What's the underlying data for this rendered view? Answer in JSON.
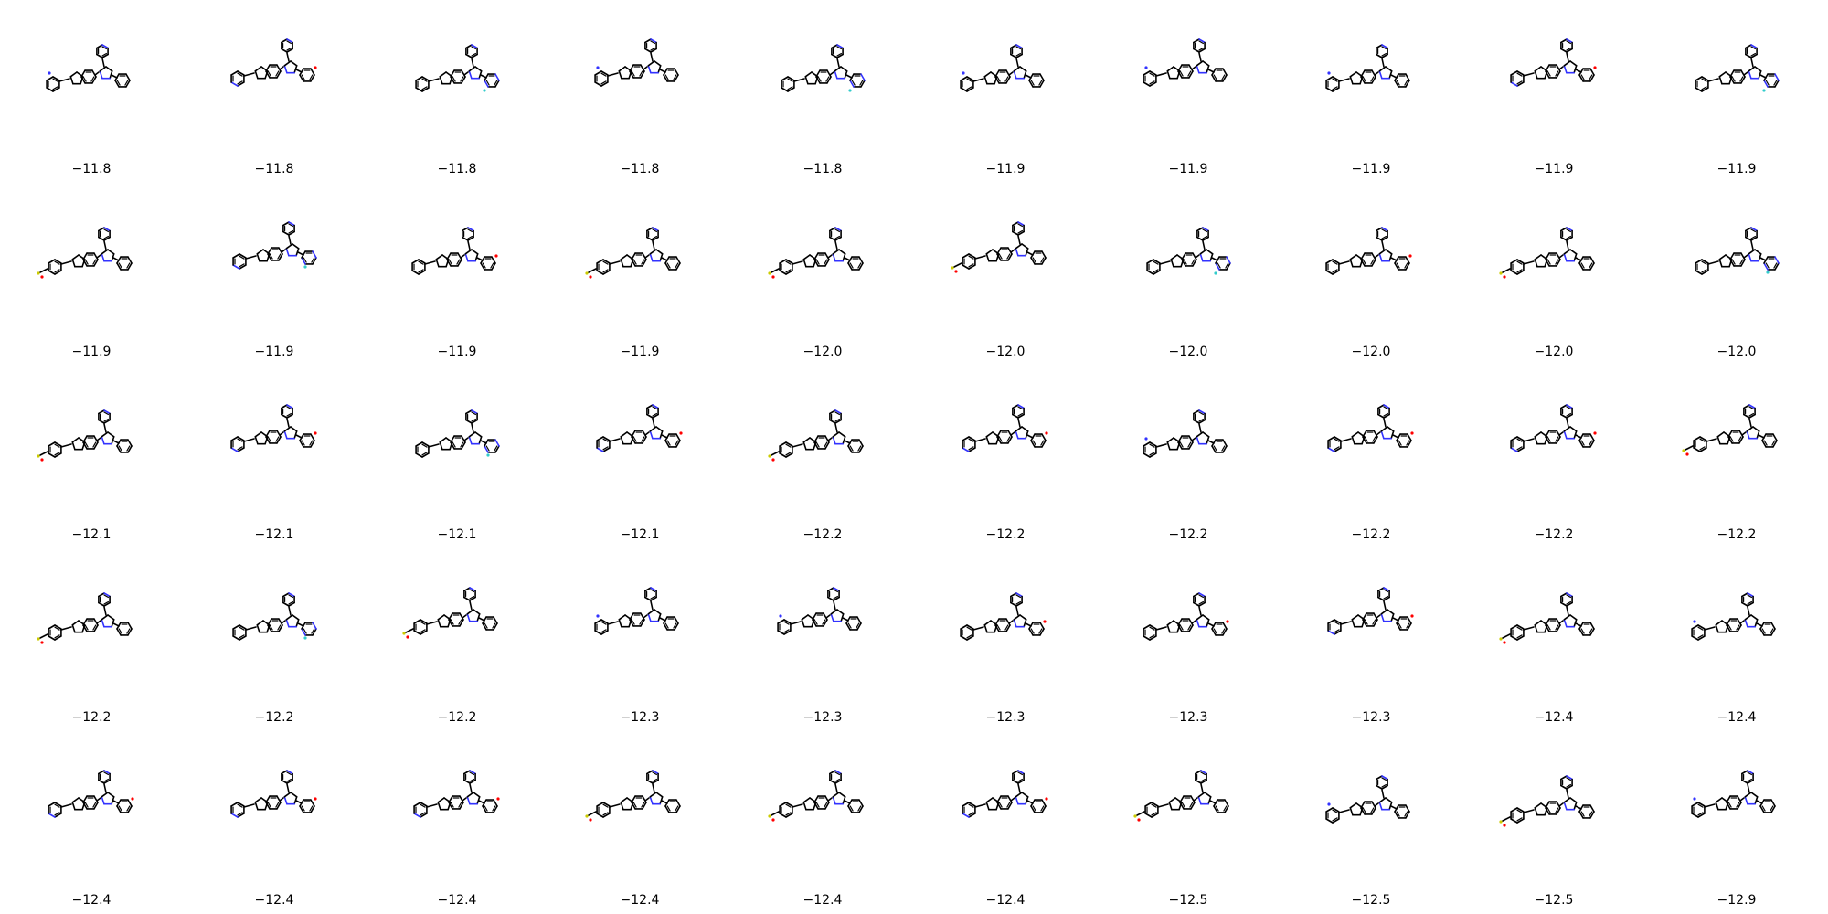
{
  "grid": {
    "columns": 10,
    "rows": 5,
    "colors": {
      "bond": "#000000",
      "N": "#3333ff",
      "O": "#ff0000",
      "F": "#33cccc",
      "S": "#cccc00"
    },
    "molecules": [
      {
        "score": "−11.8",
        "variant": "a"
      },
      {
        "score": "−11.8",
        "variant": "b"
      },
      {
        "score": "−11.8",
        "variant": "c"
      },
      {
        "score": "−11.8",
        "variant": "d"
      },
      {
        "score": "−11.8",
        "variant": "c"
      },
      {
        "score": "−11.9",
        "variant": "a"
      },
      {
        "score": "−11.9",
        "variant": "d"
      },
      {
        "score": "−11.9",
        "variant": "a"
      },
      {
        "score": "−11.9",
        "variant": "b"
      },
      {
        "score": "−11.9",
        "variant": "c"
      },
      {
        "score": "−11.9",
        "variant": "e"
      },
      {
        "score": "−11.9",
        "variant": "f"
      },
      {
        "score": "−11.9",
        "variant": "g"
      },
      {
        "score": "−11.9",
        "variant": "e"
      },
      {
        "score": "−12.0",
        "variant": "e"
      },
      {
        "score": "−12.0",
        "variant": "h"
      },
      {
        "score": "−12.0",
        "variant": "c"
      },
      {
        "score": "−12.0",
        "variant": "g"
      },
      {
        "score": "−12.0",
        "variant": "e"
      },
      {
        "score": "−12.0",
        "variant": "i"
      },
      {
        "score": "−12.1",
        "variant": "e"
      },
      {
        "score": "−12.1",
        "variant": "b"
      },
      {
        "score": "−12.1",
        "variant": "i"
      },
      {
        "score": "−12.1",
        "variant": "b"
      },
      {
        "score": "−12.2",
        "variant": "e"
      },
      {
        "score": "−12.2",
        "variant": "b"
      },
      {
        "score": "−12.2",
        "variant": "a"
      },
      {
        "score": "−12.2",
        "variant": "b"
      },
      {
        "score": "−12.2",
        "variant": "b"
      },
      {
        "score": "−12.2",
        "variant": "h"
      },
      {
        "score": "−12.2",
        "variant": "e"
      },
      {
        "score": "−12.2",
        "variant": "i"
      },
      {
        "score": "−12.2",
        "variant": "h"
      },
      {
        "score": "−12.3",
        "variant": "d"
      },
      {
        "score": "−12.3",
        "variant": "d"
      },
      {
        "score": "−12.3",
        "variant": "g"
      },
      {
        "score": "−12.3",
        "variant": "g"
      },
      {
        "score": "−12.3",
        "variant": "b"
      },
      {
        "score": "−12.4",
        "variant": "e"
      },
      {
        "score": "−12.4",
        "variant": "a"
      },
      {
        "score": "−12.4",
        "variant": "b"
      },
      {
        "score": "−12.4",
        "variant": "b"
      },
      {
        "score": "−12.4",
        "variant": "b"
      },
      {
        "score": "−12.4",
        "variant": "h"
      },
      {
        "score": "−12.4",
        "variant": "h"
      },
      {
        "score": "−12.4",
        "variant": "b"
      },
      {
        "score": "−12.5",
        "variant": "h"
      },
      {
        "score": "−12.5",
        "variant": "a"
      },
      {
        "score": "−12.5",
        "variant": "e"
      },
      {
        "score": "−12.9",
        "variant": "d"
      }
    ]
  }
}
